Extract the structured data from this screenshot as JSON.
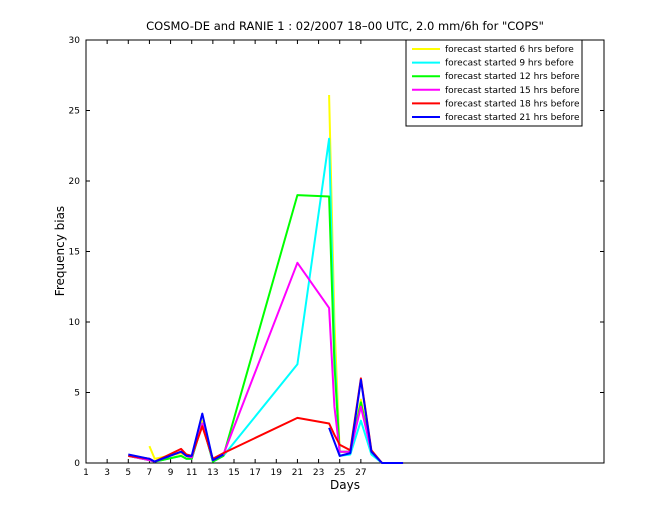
{
  "chart_data": {
    "type": "line",
    "title": "COSMO-DE and RANIE 1 : 02/2007 18–00 UTC, 2.0 mm/6h for \"COPS\"",
    "xlabel": "Days",
    "ylabel": "Frequency bias",
    "xlim": [
      1,
      50
    ],
    "ylim": [
      0,
      30
    ],
    "xticks": [
      1,
      3,
      5,
      7,
      9,
      11,
      13,
      15,
      17,
      19,
      21,
      23,
      25,
      27
    ],
    "xtick_labels": [
      "1",
      "3",
      "5",
      "7",
      "9",
      "11",
      "13",
      "15",
      "17",
      "19",
      "21",
      "23",
      "25",
      "27"
    ],
    "yticks": [
      0,
      5,
      10,
      15,
      20,
      25,
      30
    ],
    "ytick_labels": [
      "0",
      "5",
      "10",
      "15",
      "20",
      "25",
      "30"
    ],
    "legend_position": "top-right",
    "x": [
      5,
      7,
      7.5,
      10,
      10.5,
      11,
      12,
      13,
      14,
      21,
      24,
      24.5,
      25,
      26,
      27,
      28,
      29,
      31
    ],
    "series": [
      {
        "name": "forecast started 6 hrs before",
        "color": "#ffff00",
        "values": [
          null,
          1.2,
          0.3,
          0.7,
          0.5,
          0.3,
          3.0,
          0.2,
          0.5,
          null,
          26.1,
          10.0,
          0.8,
          0.8,
          4.5,
          0.8,
          0.0,
          0.0
        ]
      },
      {
        "name": "forecast started 9 hrs before",
        "color": "#00ffff",
        "values": [
          0.5,
          0.2,
          0.1,
          0.5,
          0.3,
          0.3,
          2.8,
          0.1,
          0.5,
          7.0,
          23.0,
          8.0,
          0.5,
          0.6,
          3.0,
          0.6,
          0.0,
          0.0
        ]
      },
      {
        "name": "forecast started 12 hrs before",
        "color": "#00ff00",
        "values": [
          0.5,
          0.2,
          0.1,
          0.5,
          0.3,
          0.3,
          2.8,
          0.1,
          0.5,
          19.0,
          18.9,
          7.0,
          0.8,
          0.8,
          4.3,
          0.8,
          0.0,
          0.0
        ]
      },
      {
        "name": "forecast started 15 hrs before",
        "color": "#ff00ff",
        "values": [
          0.5,
          0.2,
          0.1,
          0.8,
          0.5,
          0.4,
          2.8,
          0.2,
          0.6,
          14.2,
          11.0,
          4.0,
          0.8,
          0.8,
          4.0,
          0.8,
          0.0,
          0.0
        ]
      },
      {
        "name": "forecast started 18 hrs before",
        "color": "#ff0000",
        "values": [
          0.5,
          0.3,
          0.1,
          1.0,
          0.6,
          0.5,
          2.6,
          0.3,
          0.7,
          3.2,
          2.8,
          2.0,
          1.3,
          0.9,
          6.0,
          0.9,
          0.0,
          0.0
        ]
      },
      {
        "name": "forecast started 21 hrs before",
        "color": "#0000ff",
        "values": [
          0.6,
          0.3,
          0.1,
          0.8,
          0.5,
          0.5,
          3.5,
          0.2,
          0.6,
          null,
          2.5,
          1.5,
          0.5,
          0.7,
          5.9,
          0.8,
          0.0,
          0.0
        ]
      }
    ]
  }
}
